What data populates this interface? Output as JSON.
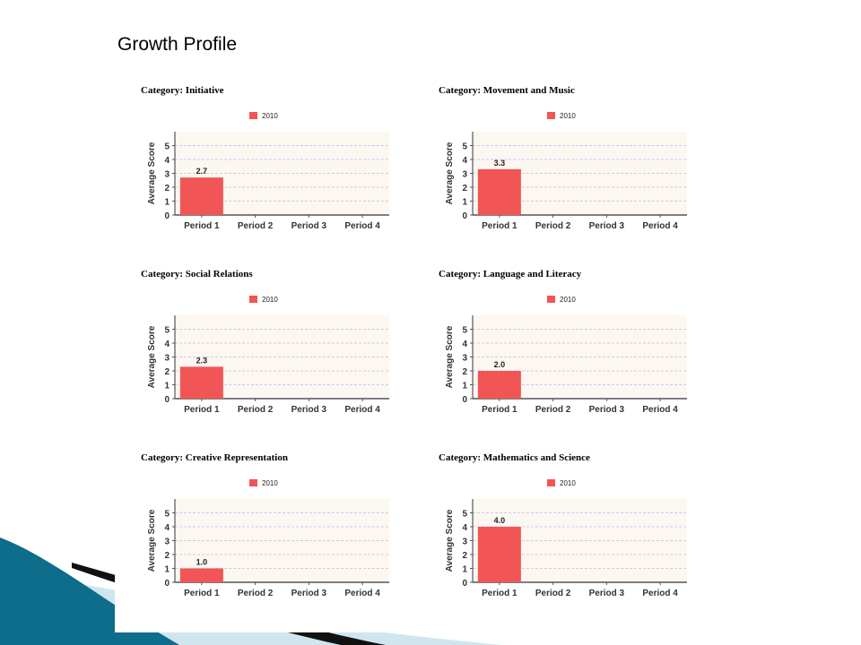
{
  "slide": {
    "title": "Growth Profile"
  },
  "colors": {
    "bar": "#f25555",
    "plot_bg": "#fdf7f2",
    "grid": "#b9bde6",
    "axis": "#555555",
    "swoosh_dark": "#0e6d8a",
    "swoosh_light": "#cfe6ef",
    "swoosh_black": "#111111"
  },
  "chart_data": [
    {
      "type": "bar",
      "title": "Category: Initiative",
      "legend": "2010",
      "ylabel": "Average Score",
      "categories": [
        "Period 1",
        "Period 2",
        "Period 3",
        "Period 4"
      ],
      "values": [
        2.7,
        null,
        null,
        null
      ],
      "value_labels": [
        "2.7",
        "",
        "",
        ""
      ],
      "yticks": [
        "0",
        "1",
        "2",
        "3",
        "4",
        "5"
      ],
      "ylim": [
        0,
        6
      ]
    },
    {
      "type": "bar",
      "title": "Category: Movement and Music",
      "legend": "2010",
      "ylabel": "Average Score",
      "categories": [
        "Period 1",
        "Period 2",
        "Period 3",
        "Period 4"
      ],
      "values": [
        3.3,
        null,
        null,
        null
      ],
      "value_labels": [
        "3.3",
        "",
        "",
        ""
      ],
      "yticks": [
        "0",
        "1",
        "2",
        "3",
        "4",
        "5"
      ],
      "ylim": [
        0,
        6
      ]
    },
    {
      "type": "bar",
      "title": "Category: Social Relations",
      "legend": "2010",
      "ylabel": "Average Score",
      "categories": [
        "Period 1",
        "Period 2",
        "Period 3",
        "Period 4"
      ],
      "values": [
        2.3,
        null,
        null,
        null
      ],
      "value_labels": [
        "2.3",
        "",
        "",
        ""
      ],
      "yticks": [
        "0",
        "1",
        "2",
        "3",
        "4",
        "5"
      ],
      "ylim": [
        0,
        6
      ]
    },
    {
      "type": "bar",
      "title": "Category: Language and Literacy",
      "legend": "2010",
      "ylabel": "Average Score",
      "categories": [
        "Period 1",
        "Period 2",
        "Period 3",
        "Period 4"
      ],
      "values": [
        2.0,
        null,
        null,
        null
      ],
      "value_labels": [
        "2.0",
        "",
        "",
        ""
      ],
      "yticks": [
        "0",
        "1",
        "2",
        "3",
        "4",
        "5"
      ],
      "ylim": [
        0,
        6
      ]
    },
    {
      "type": "bar",
      "title": "Category: Creative Representation",
      "legend": "2010",
      "ylabel": "Average Score",
      "categories": [
        "Period 1",
        "Period 2",
        "Period 3",
        "Period 4"
      ],
      "values": [
        1.0,
        null,
        null,
        null
      ],
      "value_labels": [
        "1.0",
        "",
        "",
        ""
      ],
      "yticks": [
        "0",
        "1",
        "2",
        "3",
        "4",
        "5"
      ],
      "ylim": [
        0,
        6
      ]
    },
    {
      "type": "bar",
      "title": "Category: Mathematics and Science",
      "legend": "2010",
      "ylabel": "Average Score",
      "categories": [
        "Period 1",
        "Period 2",
        "Period 3",
        "Period 4"
      ],
      "values": [
        4.0,
        null,
        null,
        null
      ],
      "value_labels": [
        "4.0",
        "",
        "",
        ""
      ],
      "yticks": [
        "0",
        "1",
        "2",
        "3",
        "4",
        "5"
      ],
      "ylim": [
        0,
        6
      ]
    }
  ]
}
